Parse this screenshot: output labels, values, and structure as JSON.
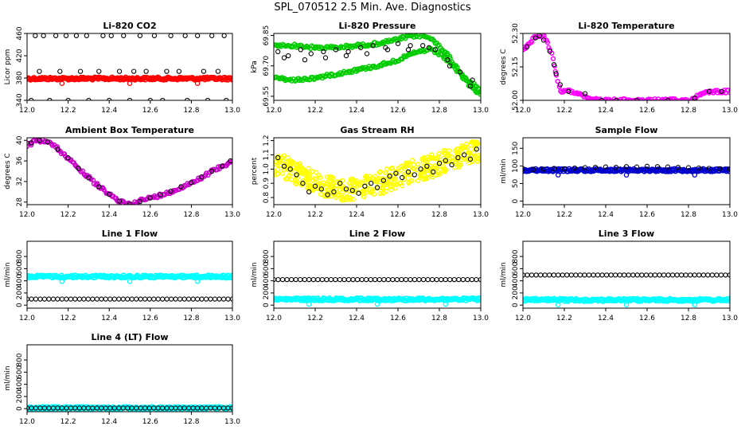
{
  "page": {
    "title": "SPL_070512  2.5 Min. Ave. Diagnostics"
  },
  "chart_data": [
    {
      "type": "scatter",
      "title": "Li-820 CO2",
      "xlabel": "",
      "ylabel": "Licor ppm",
      "xlim": [
        12.0,
        13.0
      ],
      "ylim": [
        340,
        460
      ],
      "xticks": [
        "12.0",
        "12.2",
        "12.4",
        "12.6",
        "12.8",
        "13.0"
      ],
      "yticks": [
        "340",
        "380",
        "420",
        "460"
      ],
      "ytick_values": [
        340,
        380,
        420,
        460
      ],
      "series": [
        {
          "kind": "red-band",
          "color": "#ff0000",
          "x": [
            12.0,
            13.0
          ],
          "y": [
            379,
            379
          ]
        },
        {
          "kind": "black-points",
          "color": "#000000",
          "x": [
            12.04,
            12.08,
            12.14,
            12.19,
            12.24,
            12.29,
            12.37,
            12.41,
            12.47,
            12.55,
            12.62,
            12.7,
            12.77,
            12.83,
            12.9,
            12.96,
            12.02,
            12.11,
            12.2,
            12.3,
            12.4,
            12.5,
            12.6,
            12.66,
            12.78,
            12.88,
            12.97,
            12.06,
            12.16,
            12.26,
            12.35,
            12.45,
            12.52,
            12.58,
            12.68,
            12.74,
            12.86,
            12.93
          ],
          "y": [
            456,
            456,
            456,
            456,
            456,
            456,
            456,
            456,
            456,
            456,
            456,
            456,
            456,
            456,
            456,
            456,
            340,
            340,
            340,
            340,
            340,
            340,
            340,
            340,
            340,
            340,
            340,
            392,
            392,
            392,
            392,
            392,
            392,
            392,
            392,
            392,
            392,
            392
          ]
        }
      ]
    },
    {
      "type": "scatter",
      "title": "Li-820 Pressure",
      "xlabel": "",
      "ylabel": "kPa",
      "xlim": [
        12.0,
        13.0
      ],
      "ylim": [
        69.53,
        69.86
      ],
      "xticks": [
        "12.0",
        "12.2",
        "12.4",
        "12.6",
        "12.8",
        "13.0"
      ],
      "yticks": [
        "69.55",
        "69.70",
        "69.85"
      ],
      "ytick_values": [
        69.55,
        69.7,
        69.85
      ],
      "series": [
        {
          "kind": "green-line",
          "color": "#00cc00",
          "x": [
            12.0,
            12.1,
            12.2,
            12.3,
            12.4,
            12.5,
            12.6,
            12.65,
            12.7,
            12.75,
            12.8,
            12.85,
            12.9,
            12.95,
            13.0
          ],
          "y": [
            69.8,
            69.8,
            69.79,
            69.79,
            69.8,
            69.81,
            69.83,
            69.845,
            69.85,
            69.84,
            69.8,
            69.74,
            69.67,
            69.62,
            69.58
          ]
        },
        {
          "kind": "green-line",
          "color": "#00cc00",
          "x": [
            12.0,
            12.1,
            12.2,
            12.3,
            12.4,
            12.5,
            12.6,
            12.65,
            12.7,
            12.75,
            12.8,
            12.85,
            12.9,
            12.95,
            13.0
          ],
          "y": [
            69.64,
            69.63,
            69.64,
            69.66,
            69.68,
            69.7,
            69.73,
            69.75,
            69.77,
            69.78,
            69.76,
            69.72,
            69.66,
            69.6,
            69.56
          ]
        },
        {
          "kind": "black-points",
          "color": "#000000",
          "x": [
            12.02,
            12.07,
            12.13,
            12.18,
            12.24,
            12.3,
            12.36,
            12.42,
            12.48,
            12.54,
            12.6,
            12.66,
            12.72,
            12.78,
            12.84,
            12.9,
            12.96,
            12.05,
            12.15,
            12.25,
            12.35,
            12.45,
            12.55,
            12.65,
            12.75,
            12.85,
            12.95
          ],
          "y": [
            69.77,
            69.75,
            69.78,
            69.76,
            69.77,
            69.78,
            69.77,
            69.79,
            69.8,
            69.79,
            69.81,
            69.8,
            69.8,
            69.78,
            69.73,
            69.67,
            69.63,
            69.74,
            69.73,
            69.74,
            69.75,
            69.76,
            69.78,
            69.78,
            69.79,
            69.7,
            69.6
          ]
        }
      ]
    },
    {
      "type": "scatter",
      "title": "Li-820 Temperature",
      "xlabel": "",
      "ylabel": "degrees C",
      "xlim": [
        12.0,
        13.0
      ],
      "ylim": [
        52.0,
        52.3
      ],
      "xticks": [
        "12.0",
        "12.2",
        "12.4",
        "12.6",
        "12.8",
        "13.0"
      ],
      "yticks": [
        "52.00",
        "52.15",
        "52.30"
      ],
      "ytick_values": [
        52.0,
        52.15,
        52.3
      ],
      "series": [
        {
          "kind": "magenta-line",
          "color": "#ff00ff",
          "x": [
            12.0,
            12.04,
            12.06,
            12.08,
            12.1,
            12.12,
            12.14,
            12.17,
            12.18,
            12.2,
            12.24,
            12.28,
            12.32,
            12.36,
            12.5,
            12.7,
            12.8,
            12.83,
            12.87,
            12.9,
            13.0
          ],
          "y": [
            52.23,
            52.26,
            52.29,
            52.29,
            52.29,
            52.26,
            52.2,
            52.08,
            52.04,
            52.04,
            52.04,
            52.03,
            52.01,
            52.0,
            52.0,
            52.0,
            52.0,
            52.01,
            52.035,
            52.04,
            52.04
          ]
        },
        {
          "kind": "black-points",
          "color": "#000000",
          "x": [
            12.02,
            12.06,
            12.08,
            12.1,
            12.13,
            12.15,
            12.16,
            12.18,
            12.22,
            12.3,
            12.38,
            12.45,
            12.55,
            12.7,
            12.83,
            12.9,
            12.96
          ],
          "y": [
            52.24,
            52.28,
            52.29,
            52.27,
            52.22,
            52.16,
            52.12,
            52.07,
            52.04,
            52.03,
            52.0,
            52.0,
            52.0,
            52.0,
            52.01,
            52.04,
            52.04
          ]
        }
      ]
    },
    {
      "type": "scatter",
      "title": "Ambient Box Temperature",
      "xlabel": "",
      "ylabel": "degrees C",
      "xlim": [
        12.0,
        13.0
      ],
      "ylim": [
        27.5,
        40.5
      ],
      "xticks": [
        "12.0",
        "12.2",
        "12.4",
        "12.6",
        "12.8",
        "13.0"
      ],
      "yticks": [
        "28",
        "32",
        "36",
        "40"
      ],
      "ytick_values": [
        28,
        32,
        36,
        40
      ],
      "series": [
        {
          "kind": "magenta-line",
          "color": "#cc00cc",
          "x": [
            12.0,
            12.04,
            12.08,
            12.12,
            12.16,
            12.2,
            12.24,
            12.28,
            12.32,
            12.36,
            12.4,
            12.44,
            12.48,
            12.5,
            12.52,
            12.56,
            12.6,
            12.64,
            12.68,
            12.72,
            12.76,
            12.8,
            12.84,
            12.88,
            12.92,
            12.96,
            13.0
          ],
          "y": [
            39.0,
            39.8,
            40.0,
            39.3,
            38.0,
            36.6,
            35.0,
            33.5,
            32.0,
            30.7,
            29.5,
            28.4,
            27.8,
            27.6,
            27.9,
            28.4,
            28.8,
            29.2,
            29.7,
            30.3,
            31.0,
            31.8,
            32.6,
            33.5,
            34.4,
            35.2,
            36.0
          ]
        },
        {
          "kind": "black-points",
          "color": "#000000",
          "x": [
            12.02,
            12.06,
            12.1,
            12.15,
            12.2,
            12.25,
            12.3,
            12.35,
            12.4,
            12.45,
            12.5,
            12.55,
            12.6,
            12.65,
            12.7,
            12.75,
            12.8,
            12.85,
            12.9,
            12.95,
            12.99
          ],
          "y": [
            39.5,
            40.0,
            39.7,
            38.3,
            36.6,
            34.6,
            32.7,
            31.0,
            29.5,
            28.2,
            27.6,
            28.1,
            28.8,
            29.4,
            30.1,
            31.0,
            31.8,
            32.9,
            34.0,
            35.0,
            36.0
          ]
        }
      ]
    },
    {
      "type": "scatter",
      "title": "Gas Stream RH",
      "xlabel": "",
      "ylabel": "percent",
      "xlim": [
        12.0,
        13.0
      ],
      "ylim": [
        0.75,
        1.22
      ],
      "xticks": [
        "12.0",
        "12.2",
        "12.4",
        "12.6",
        "12.8",
        "13.0"
      ],
      "yticks": [
        "0.8",
        "0.9",
        "1.0",
        "1.1",
        "1.2"
      ],
      "ytick_values": [
        0.8,
        0.9,
        1.0,
        1.1,
        1.2
      ],
      "series": [
        {
          "kind": "yellow-cloud",
          "color": "#ffff00",
          "x": [
            12.0,
            12.08,
            12.16,
            12.24,
            12.32,
            12.4,
            12.48,
            12.56,
            12.64,
            12.72,
            12.8,
            12.88,
            12.96,
            13.0
          ],
          "y": [
            1.04,
            1.0,
            0.93,
            0.88,
            0.86,
            0.86,
            0.88,
            0.93,
            0.97,
            1.0,
            1.04,
            1.08,
            1.12,
            1.14
          ]
        },
        {
          "kind": "black-points",
          "color": "#000000",
          "x": [
            12.02,
            12.05,
            12.08,
            12.11,
            12.14,
            12.17,
            12.2,
            12.23,
            12.26,
            12.29,
            12.32,
            12.35,
            12.38,
            12.41,
            12.44,
            12.47,
            12.5,
            12.53,
            12.56,
            12.59,
            12.62,
            12.65,
            12.68,
            12.71,
            12.74,
            12.77,
            12.8,
            12.83,
            12.86,
            12.89,
            12.92,
            12.95,
            12.98
          ],
          "y": [
            1.08,
            1.02,
            1.0,
            0.96,
            0.9,
            0.84,
            0.88,
            0.86,
            0.82,
            0.84,
            0.9,
            0.86,
            0.85,
            0.83,
            0.88,
            0.9,
            0.87,
            0.92,
            0.95,
            0.97,
            0.94,
            0.98,
            0.96,
            1.0,
            1.02,
            0.98,
            1.04,
            1.06,
            1.03,
            1.08,
            1.1,
            1.07,
            1.14
          ]
        }
      ]
    },
    {
      "type": "scatter",
      "title": "Sample Flow",
      "xlabel": "",
      "ylabel": "ml/min",
      "xlim": [
        12.0,
        13.0
      ],
      "ylim": [
        -10,
        180
      ],
      "xticks": [
        "12.0",
        "12.2",
        "12.4",
        "12.6",
        "12.8",
        "13.0"
      ],
      "yticks": [
        "0",
        "50",
        "100",
        "150"
      ],
      "ytick_values": [
        0,
        50,
        100,
        150
      ],
      "series": [
        {
          "kind": "blue-band",
          "color": "#0000cc",
          "x": [
            12.0,
            13.0
          ],
          "y": [
            88,
            88
          ]
        },
        {
          "kind": "black-points",
          "color": "#000000",
          "x": [
            12.0,
            12.05,
            12.1,
            12.15,
            12.2,
            12.25,
            12.3,
            12.35,
            12.4,
            12.45,
            12.5,
            12.55,
            12.6,
            12.65,
            12.7,
            12.75,
            12.8,
            12.85,
            12.9,
            12.95,
            13.0
          ],
          "y": [
            92,
            90,
            91,
            93,
            92,
            94,
            95,
            96,
            97,
            96,
            98,
            97,
            99,
            98,
            97,
            96,
            95,
            94,
            93,
            92,
            91
          ]
        }
      ]
    },
    {
      "type": "scatter",
      "title": "Line 1 Flow",
      "xlabel": "",
      "ylabel": "ml/min",
      "xlim": [
        12.0,
        13.0
      ],
      "ylim": [
        -50,
        1050
      ],
      "xticks": [
        "12.0",
        "12.2",
        "12.4",
        "12.6",
        "12.8",
        "13.0"
      ],
      "yticks": [
        "0",
        "200",
        "400",
        "600",
        "800"
      ],
      "ytick_values": [
        0,
        200,
        400,
        600,
        800
      ],
      "series": [
        {
          "kind": "cyan-band",
          "color": "#00ffff",
          "x": [
            12.0,
            13.0
          ],
          "y": [
            470,
            470
          ]
        },
        {
          "kind": "black-points",
          "color": "#000000",
          "x": [
            12.0,
            13.0
          ],
          "y": [
            100,
            100
          ]
        }
      ]
    },
    {
      "type": "scatter",
      "title": "Line 2 Flow",
      "xlabel": "",
      "ylabel": "ml/min",
      "xlim": [
        12.0,
        13.0
      ],
      "ylim": [
        -50,
        1050
      ],
      "xticks": [
        "12.0",
        "12.2",
        "12.4",
        "12.6",
        "12.8",
        "13.0"
      ],
      "yticks": [
        "0",
        "200",
        "400",
        "600",
        "800"
      ],
      "ytick_values": [
        0,
        200,
        400,
        600,
        800
      ],
      "series": [
        {
          "kind": "black-points",
          "color": "#000000",
          "x": [
            12.0,
            13.0
          ],
          "y": [
            420,
            420
          ]
        },
        {
          "kind": "cyan-band",
          "color": "#00ffff",
          "x": [
            12.0,
            13.0
          ],
          "y": [
            95,
            95
          ]
        }
      ]
    },
    {
      "type": "scatter",
      "title": "Line 3 Flow",
      "xlabel": "",
      "ylabel": "ml/min",
      "xlim": [
        12.0,
        13.0
      ],
      "ylim": [
        -50,
        1050
      ],
      "xticks": [
        "12.0",
        "12.2",
        "12.4",
        "12.6",
        "12.8",
        "13.0"
      ],
      "yticks": [
        "0",
        "200",
        "400",
        "600",
        "800"
      ],
      "ytick_values": [
        0,
        200,
        400,
        600,
        800
      ],
      "series": [
        {
          "kind": "black-points",
          "color": "#000000",
          "x": [
            12.0,
            13.0
          ],
          "y": [
            495,
            495
          ]
        },
        {
          "kind": "cyan-band",
          "color": "#00ffff",
          "x": [
            12.0,
            13.0
          ],
          "y": [
            85,
            85
          ]
        }
      ]
    },
    {
      "type": "scatter",
      "title": "Line 4 (LT) Flow",
      "xlabel": "",
      "ylabel": "ml/min",
      "xlim": [
        12.0,
        13.0
      ],
      "ylim": [
        -50,
        1050
      ],
      "xticks": [
        "12.0",
        "12.2",
        "12.4",
        "12.6",
        "12.8",
        "13.0"
      ],
      "yticks": [
        "0",
        "200",
        "400",
        "600",
        "800"
      ],
      "ytick_values": [
        0,
        200,
        400,
        600,
        800
      ],
      "series": [
        {
          "kind": "cyan-band",
          "color": "#00ffff",
          "x": [
            12.0,
            13.0
          ],
          "y": [
            10,
            10
          ]
        },
        {
          "kind": "black-points",
          "color": "#000000",
          "x": [
            12.0,
            13.0
          ],
          "y": [
            10,
            10
          ]
        }
      ]
    }
  ]
}
